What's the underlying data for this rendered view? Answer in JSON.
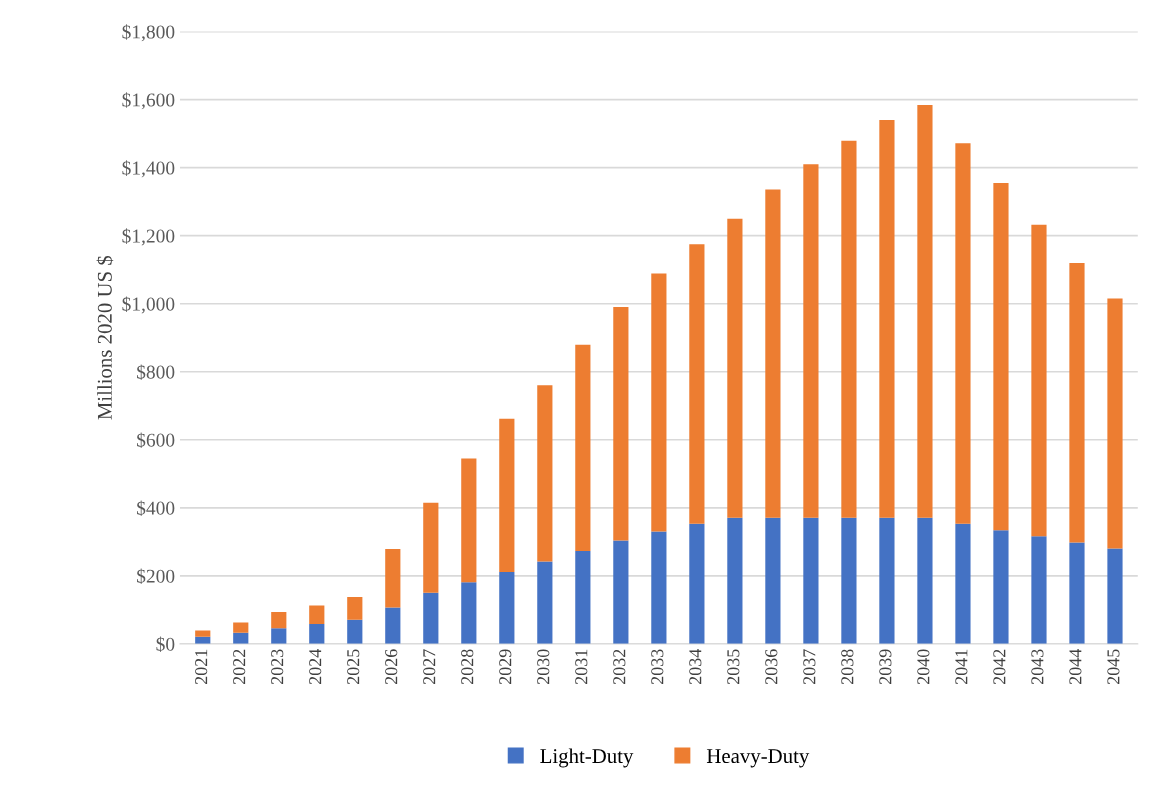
{
  "chart_data": {
    "type": "bar",
    "stacked": true,
    "ylabel": "Millions 2020 US $",
    "categories": [
      "2021",
      "2022",
      "2023",
      "2024",
      "2025",
      "2026",
      "2027",
      "2028",
      "2029",
      "2030",
      "2031",
      "2032",
      "2033",
      "2034",
      "2035",
      "2036",
      "2037",
      "2038",
      "2039",
      "2040",
      "2041",
      "2042",
      "2043",
      "2044",
      "2045"
    ],
    "series": [
      {
        "name": "Light-Duty",
        "color": "#4472c4",
        "values": [
          21,
          33,
          46,
          58,
          71,
          107,
          150,
          181,
          211,
          242,
          273,
          304,
          330,
          353,
          371,
          371,
          371,
          371,
          371,
          371,
          353,
          334,
          316,
          298,
          280
        ]
      },
      {
        "name": "Heavy-Duty",
        "color": "#ed7d31",
        "values": [
          18,
          30,
          48,
          55,
          67,
          172,
          265,
          364,
          451,
          518,
          606,
          686,
          759,
          822,
          879,
          965,
          1039,
          1108,
          1169,
          1213,
          1119,
          1021,
          916,
          822,
          735
        ]
      }
    ],
    "ylim": [
      0,
      1800
    ],
    "yticks": [
      {
        "value": 0,
        "label": "$0"
      },
      {
        "value": 200,
        "label": "$200"
      },
      {
        "value": 400,
        "label": "$400"
      },
      {
        "value": 600,
        "label": "$600"
      },
      {
        "value": 800,
        "label": "$800"
      },
      {
        "value": 1000,
        "label": "$1,000"
      },
      {
        "value": 1200,
        "label": "$1,200"
      },
      {
        "value": 1400,
        "label": "$1,400"
      },
      {
        "value": 1600,
        "label": "$1,600"
      },
      {
        "value": 1800,
        "label": "$1,800"
      }
    ],
    "grid": "y",
    "legend": "bottom"
  }
}
